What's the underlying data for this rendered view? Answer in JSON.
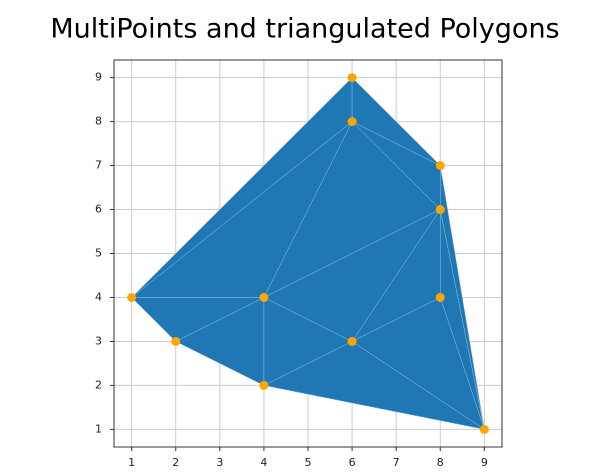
{
  "chart_data": {
    "type": "triangulation",
    "title": "MultiPoints and triangulated Polygons",
    "points": {
      "color": "#ffa500",
      "x": [
        6,
        6,
        8,
        8,
        1,
        4,
        8,
        2,
        6,
        4,
        9
      ],
      "y": [
        9,
        8,
        7,
        6,
        4,
        4,
        4,
        3,
        3,
        2,
        1
      ]
    },
    "polygons": {
      "color": "#1f77b4",
      "edge_color": "#8fbbda",
      "items": [
        {
          "x": [
            1,
            6,
            6
          ],
          "y": [
            4,
            9,
            8
          ]
        },
        {
          "x": [
            6,
            8,
            6
          ],
          "y": [
            9,
            7,
            8
          ]
        },
        {
          "x": [
            6,
            8,
            8
          ],
          "y": [
            8,
            7,
            6
          ]
        },
        {
          "x": [
            1,
            6,
            4
          ],
          "y": [
            4,
            8,
            4
          ]
        },
        {
          "x": [
            4,
            6,
            8
          ],
          "y": [
            4,
            8,
            6
          ]
        },
        {
          "x": [
            1,
            4,
            2
          ],
          "y": [
            4,
            4,
            3
          ]
        },
        {
          "x": [
            2,
            4,
            4
          ],
          "y": [
            3,
            4,
            2
          ]
        },
        {
          "x": [
            4,
            4,
            6
          ],
          "y": [
            2,
            4,
            3
          ]
        },
        {
          "x": [
            4,
            8,
            6
          ],
          "y": [
            4,
            6,
            3
          ]
        },
        {
          "x": [
            6,
            8,
            8
          ],
          "y": [
            3,
            6,
            4
          ]
        },
        {
          "x": [
            8,
            8,
            9
          ],
          "y": [
            4,
            6,
            1
          ]
        },
        {
          "x": [
            8,
            8,
            9
          ],
          "y": [
            6,
            7,
            1
          ]
        },
        {
          "x": [
            6,
            8,
            9
          ],
          "y": [
            3,
            4,
            1
          ]
        },
        {
          "x": [
            4,
            6,
            9
          ],
          "y": [
            2,
            3,
            1
          ]
        }
      ]
    },
    "xlim": [
      0.6,
      9.4
    ],
    "ylim": [
      0.6,
      9.4
    ],
    "xticks": [
      1,
      2,
      3,
      4,
      5,
      6,
      7,
      8,
      9
    ],
    "yticks": [
      1,
      2,
      3,
      4,
      5,
      6,
      7,
      8,
      9
    ],
    "grid": true
  }
}
